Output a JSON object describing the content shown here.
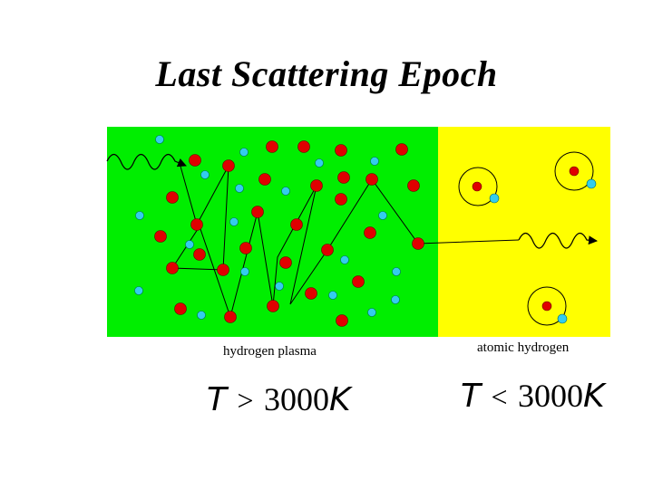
{
  "title": "Last Scattering Epoch",
  "colors": {
    "plasma_region": "#00ee00",
    "atomic_region": "#ffff00",
    "proton": "#e00000",
    "electron": "#33ccee"
  },
  "panels": {
    "left": {
      "label": "hydrogen plasma",
      "condition": {
        "variable_left": "T",
        "operator": ">",
        "value": "3000",
        "variable_right": "K"
      }
    },
    "right": {
      "label": "atomic hydrogen",
      "condition": {
        "variable_left": "T",
        "operator": "<",
        "value": "3000",
        "variable_right": "K"
      }
    }
  }
}
